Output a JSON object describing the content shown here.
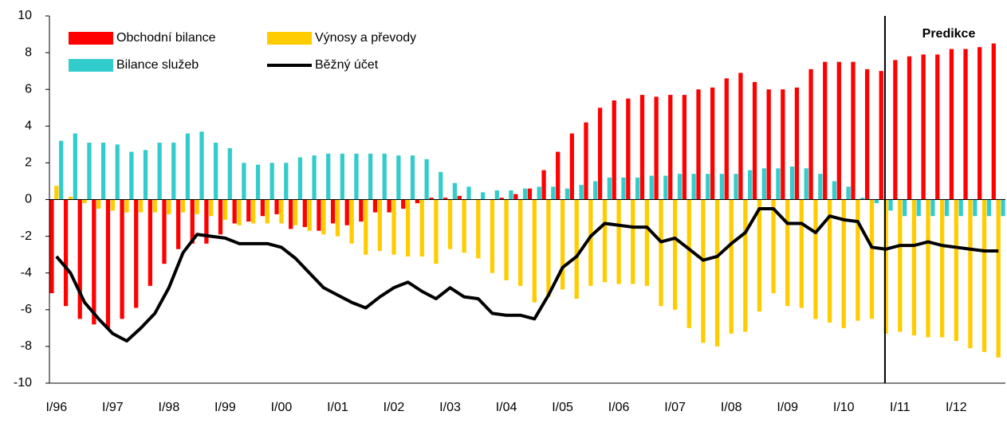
{
  "chart_data": {
    "type": "bar",
    "categories": [
      "I/96",
      null,
      null,
      null,
      "I/97",
      null,
      null,
      null,
      "I/98",
      null,
      null,
      null,
      "I/99",
      null,
      null,
      null,
      "I/00",
      null,
      null,
      null,
      "I/01",
      null,
      null,
      null,
      "I/02",
      null,
      null,
      null,
      "I/03",
      null,
      null,
      null,
      "I/04",
      null,
      null,
      null,
      "I/05",
      null,
      null,
      null,
      "I/06",
      null,
      null,
      null,
      "I/07",
      null,
      null,
      null,
      "I/08",
      null,
      null,
      null,
      "I/09",
      null,
      null,
      null,
      "I/10",
      null,
      null,
      null,
      "I/11",
      null,
      null,
      null,
      "I/12",
      null,
      null,
      null
    ],
    "series": [
      {
        "name": "Obchodní bilance",
        "color": "#ff0000",
        "type": "bar",
        "values": [
          -5.1,
          -5.8,
          -6.5,
          -6.8,
          -7.0,
          -6.5,
          -5.9,
          -4.7,
          -3.5,
          -2.7,
          -2.4,
          -2.4,
          -1.9,
          -1.3,
          -1.2,
          -0.9,
          -0.8,
          -1.6,
          -1.5,
          -1.7,
          -1.3,
          -1.4,
          -1.2,
          -0.7,
          -0.7,
          -0.5,
          -0.2,
          0.1,
          0.1,
          0.2,
          0.0,
          0.0,
          0.1,
          0.3,
          0.6,
          1.6,
          2.6,
          3.6,
          4.2,
          5.0,
          5.4,
          5.5,
          5.7,
          5.6,
          5.7,
          5.7,
          6.0,
          6.1,
          6.6,
          6.9,
          6.4,
          6.0,
          6.0,
          6.1,
          7.1,
          7.5,
          7.5,
          7.5,
          7.1,
          7.0,
          7.6,
          7.8,
          7.9,
          7.9,
          8.2,
          8.2,
          8.3,
          8.5
        ]
      },
      {
        "name": "Výnosy a převody",
        "color": "#ffcc00",
        "type": "bar",
        "values": [
          0.75,
          0.15,
          -0.2,
          -0.5,
          -0.6,
          -0.7,
          -0.7,
          -0.7,
          -0.8,
          -0.7,
          -0.8,
          -0.9,
          -1.1,
          -1.4,
          -1.3,
          -1.3,
          -1.3,
          -1.4,
          -1.7,
          -1.9,
          -2.0,
          -2.4,
          -3.0,
          -2.8,
          -3.0,
          -3.1,
          -3.1,
          -3.5,
          -2.7,
          -2.9,
          -3.2,
          -4.0,
          -4.4,
          -4.7,
          -5.6,
          -5.3,
          -4.9,
          -5.4,
          -4.7,
          -4.5,
          -4.6,
          -4.6,
          -4.7,
          -5.8,
          -6.0,
          -7.0,
          -7.8,
          -8.0,
          -7.3,
          -7.2,
          -6.1,
          -5.1,
          -5.8,
          -5.9,
          -6.5,
          -6.7,
          -7.0,
          -6.6,
          -6.5,
          -7.3,
          -7.2,
          -7.4,
          -7.5,
          -7.5,
          -7.7,
          -8.1,
          -8.3,
          -8.6
        ]
      },
      {
        "name": "Bilance služeb",
        "color": "#33cccc",
        "type": "bar",
        "values": [
          3.2,
          3.6,
          3.1,
          3.1,
          3.0,
          2.6,
          2.7,
          3.1,
          3.1,
          3.6,
          3.7,
          3.1,
          2.8,
          2.0,
          1.9,
          2.0,
          2.0,
          2.3,
          2.4,
          2.5,
          2.5,
          2.5,
          2.5,
          2.5,
          2.4,
          2.4,
          2.2,
          1.5,
          0.9,
          0.7,
          0.4,
          0.5,
          0.5,
          0.6,
          0.7,
          0.7,
          0.6,
          0.8,
          1.0,
          1.2,
          1.2,
          1.2,
          1.3,
          1.3,
          1.4,
          1.4,
          1.4,
          1.4,
          1.4,
          1.6,
          1.7,
          1.7,
          1.8,
          1.7,
          1.4,
          1.0,
          0.7,
          0.1,
          -0.2,
          -0.6,
          -0.9,
          -0.9,
          -0.9,
          -0.9,
          -0.9,
          -0.9,
          -0.9,
          -0.9
        ]
      },
      {
        "name": "Běžný účet",
        "color": "#000000",
        "type": "line",
        "values": [
          -3.1,
          -4.0,
          -5.6,
          -6.5,
          -7.3,
          -7.7,
          -7.0,
          -6.2,
          -4.8,
          -2.9,
          -1.9,
          -2.0,
          -2.1,
          -2.4,
          -2.4,
          -2.4,
          -2.6,
          -3.2,
          -4.0,
          -4.8,
          -5.2,
          -5.6,
          -5.9,
          -5.3,
          -4.8,
          -4.5,
          -5.0,
          -5.4,
          -4.8,
          -5.3,
          -5.4,
          -6.2,
          -6.3,
          -6.3,
          -6.5,
          -5.2,
          -3.7,
          -3.1,
          -2.0,
          -1.3,
          -1.4,
          -1.5,
          -1.5,
          -2.3,
          -2.1,
          -2.7,
          -3.3,
          -3.1,
          -2.4,
          -1.8,
          -0.5,
          -0.5,
          -1.3,
          -1.3,
          -1.8,
          -0.9,
          -1.1,
          -1.2,
          -2.6,
          -2.7,
          -2.5,
          -2.5,
          -2.3,
          -2.5,
          -2.6,
          -2.7,
          -2.8,
          -2.8
        ]
      }
    ],
    "annotation": {
      "text": "Predikce",
      "at": "I/11"
    },
    "ylim": [
      -10,
      10
    ],
    "yticks": [
      -10,
      -8,
      -6,
      -4,
      -2,
      0,
      2,
      4,
      6,
      8,
      10
    ],
    "legend": "upper left"
  }
}
